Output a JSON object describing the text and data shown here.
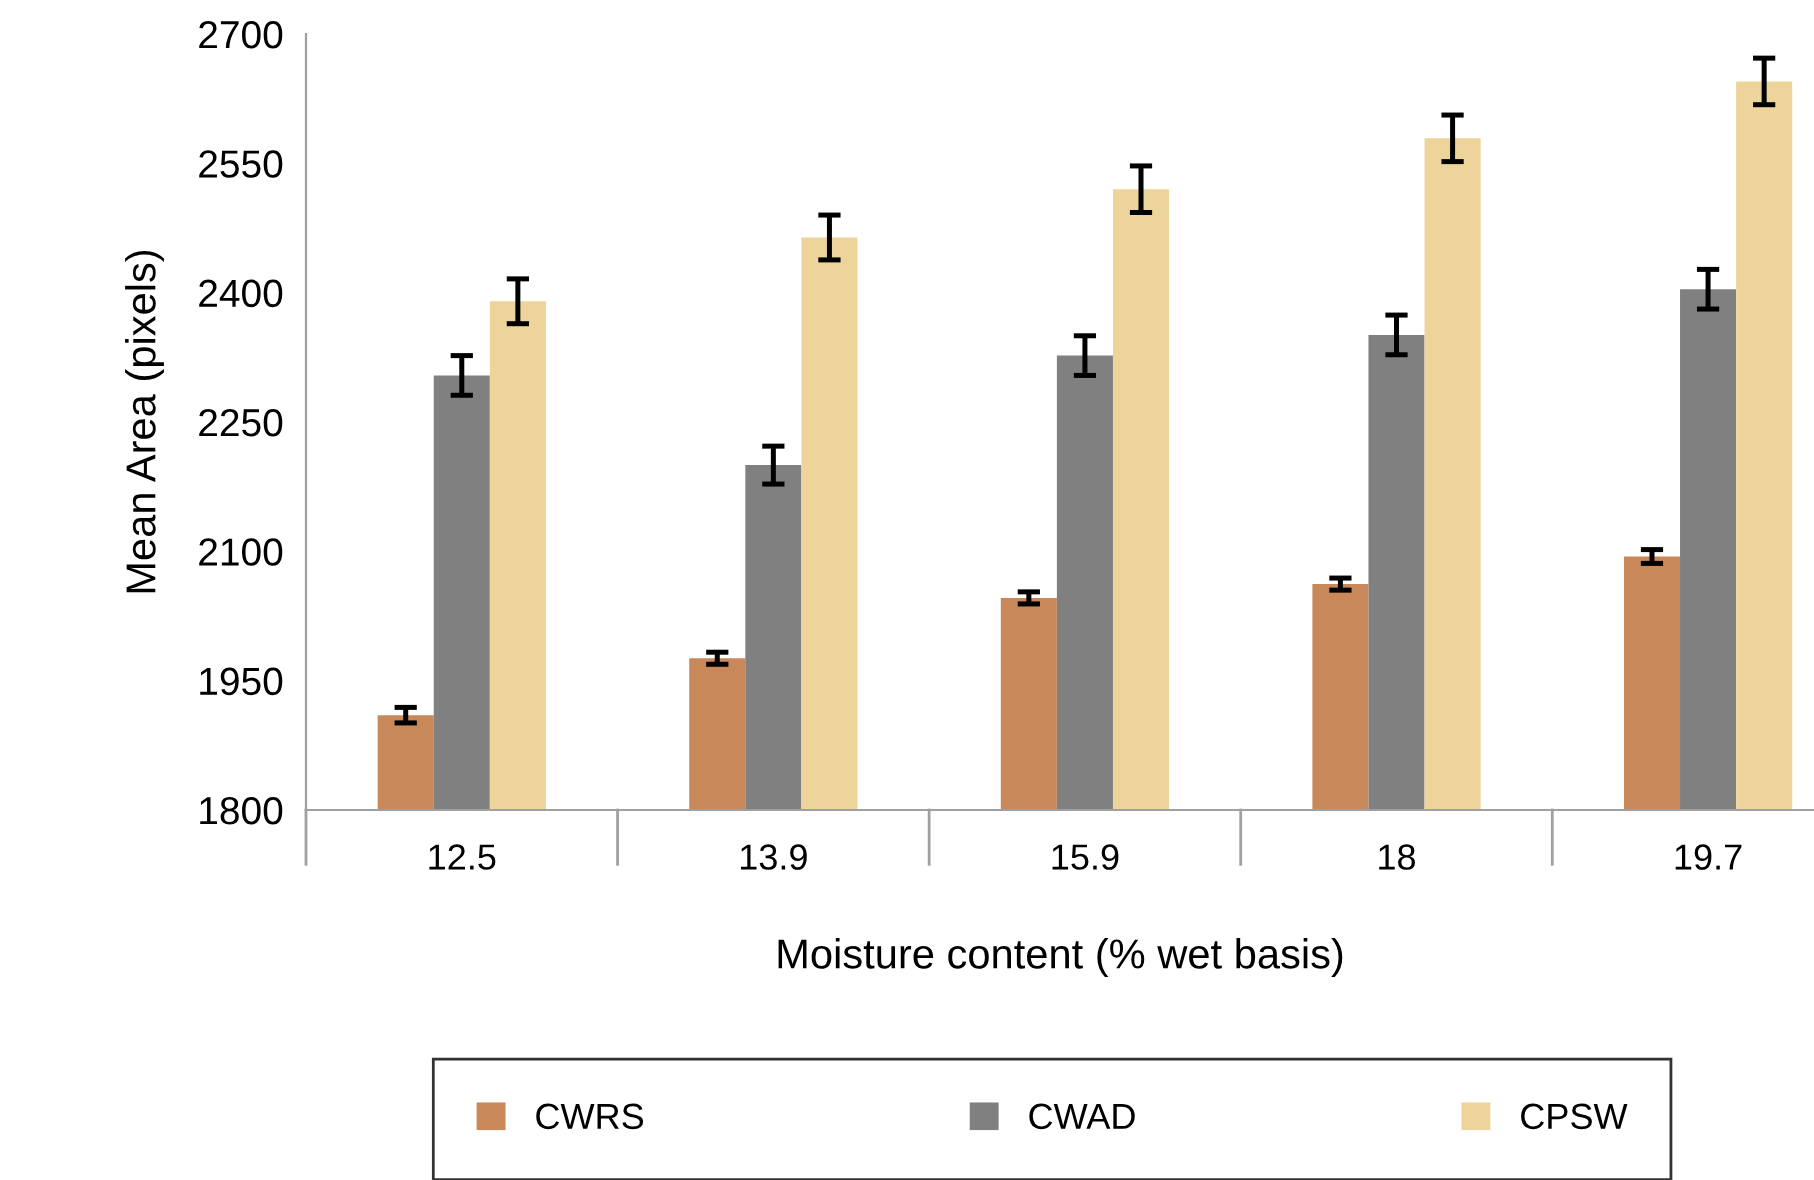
{
  "chart_data": {
    "type": "bar",
    "xlabel": "Moisture content (% wet basis)",
    "ylabel": "Mean Area (pixels)",
    "categories": [
      "12.5",
      "13.9",
      "15.9",
      "18",
      "19.7"
    ],
    "series": [
      {
        "name": "CWRS",
        "color": "#c8885a",
        "values": [
          1910,
          1976,
          2046,
          2062,
          2094
        ],
        "errors": [
          9,
          7,
          7,
          7,
          8
        ]
      },
      {
        "name": "CWAD",
        "color": "#808080",
        "values": [
          2304,
          2200,
          2327,
          2351,
          2404
        ],
        "errors": [
          23,
          22,
          23,
          23,
          23
        ]
      },
      {
        "name": "CPSW",
        "color": "#ecd49a",
        "values": [
          2390,
          2464,
          2520,
          2579,
          2645
        ],
        "errors": [
          26,
          26,
          27,
          27,
          27
        ]
      }
    ],
    "ylim": [
      1800,
      2700
    ],
    "yticks": [
      1800,
      1950,
      2100,
      2250,
      2400,
      2550,
      2700
    ],
    "grid": false,
    "legend": "bottom"
  }
}
